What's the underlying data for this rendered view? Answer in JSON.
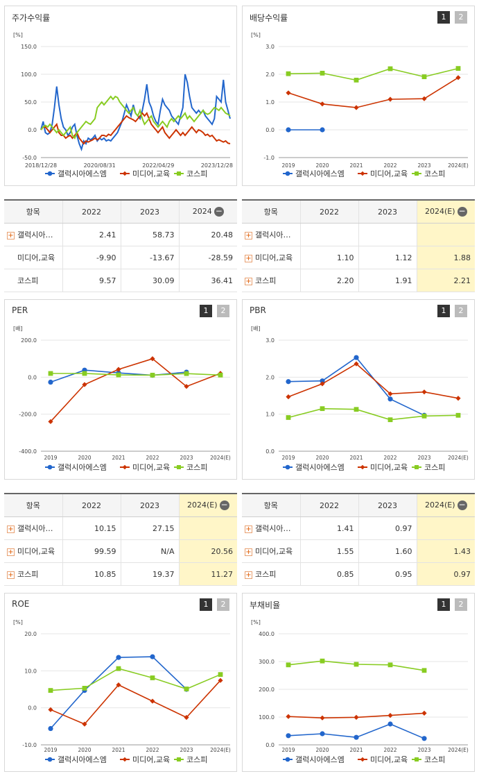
{
  "legend": {
    "s1": "갤럭시아에스엠",
    "s2": "미디어,교육",
    "s3": "코스피"
  },
  "colors": {
    "s1": "#2266cc",
    "s2": "#cc3300",
    "s3": "#88cc22"
  },
  "buttons": {
    "one": "1",
    "two": "2"
  },
  "row_plus": "+",
  "minus": "−",
  "charts": {
    "price": {
      "title": "주가수익률",
      "unit": "[%]",
      "y_ticks": [
        "150.0",
        "100.0",
        "50.0",
        "0.0",
        "-50.0"
      ],
      "x_ticks": [
        "2018/12/28",
        "2020/08/31",
        "2022/04/29",
        "2023/12/28"
      ]
    },
    "div": {
      "title": "배당수익률",
      "unit": "[%]",
      "y_ticks": [
        "3.0",
        "2.0",
        "1.0",
        "0.0",
        "-1.0"
      ],
      "x_ticks": [
        "2019",
        "2020",
        "2021",
        "2022",
        "2023",
        "2024(E)"
      ]
    },
    "per": {
      "title": "PER",
      "unit": "[배]",
      "y_ticks": [
        "200.0",
        "0.0",
        "-200.0",
        "-400.0"
      ],
      "x_ticks": [
        "2019",
        "2020",
        "2021",
        "2022",
        "2023",
        "2024(E)"
      ]
    },
    "pbr": {
      "title": "PBR",
      "unit": "[배]",
      "y_ticks": [
        "3.0",
        "2.0",
        "1.0",
        "0.0"
      ],
      "x_ticks": [
        "2019",
        "2020",
        "2021",
        "2022",
        "2023",
        "2024(E)"
      ]
    },
    "roe": {
      "title": "ROE",
      "unit": "[%]",
      "y_ticks": [
        "20.0",
        "10.0",
        "0.0",
        "-10.0"
      ],
      "x_ticks": [
        "2019",
        "2020",
        "2021",
        "2022",
        "2023",
        "2024(E)"
      ]
    },
    "debt": {
      "title": "부채비율",
      "unit": "[%]",
      "y_ticks": [
        "400.0",
        "300.0",
        "200.0",
        "100.0",
        "0.0"
      ],
      "x_ticks": [
        "2019",
        "2020",
        "2021",
        "2022",
        "2023",
        "2024(E)"
      ]
    }
  },
  "tables": {
    "price": {
      "header": [
        "항목",
        "2022",
        "2023",
        "2024"
      ],
      "rows": [
        {
          "name": "갤럭시아…",
          "plus": true,
          "v": [
            "2.41",
            "58.73",
            "20.48"
          ]
        },
        {
          "name": "미디어,교육",
          "plus": false,
          "v": [
            "-9.90",
            "-13.67",
            "-28.59"
          ]
        },
        {
          "name": "코스피",
          "plus": false,
          "v": [
            "9.57",
            "30.09",
            "36.41"
          ]
        }
      ]
    },
    "div": {
      "header": [
        "항목",
        "2022",
        "2023",
        "2024(E)"
      ],
      "rows": [
        {
          "name": "갤럭시아…",
          "plus": true,
          "v": [
            "",
            "",
            ""
          ]
        },
        {
          "name": "미디어,교육",
          "plus": true,
          "v": [
            "1.10",
            "1.12",
            "1.88"
          ]
        },
        {
          "name": "코스피",
          "plus": true,
          "v": [
            "2.20",
            "1.91",
            "2.21"
          ]
        }
      ]
    },
    "per": {
      "header": [
        "항목",
        "2022",
        "2023",
        "2024(E)"
      ],
      "rows": [
        {
          "name": "갤럭시아…",
          "plus": true,
          "v": [
            "10.15",
            "27.15",
            ""
          ]
        },
        {
          "name": "미디어,교육",
          "plus": true,
          "v": [
            "99.59",
            "N/A",
            "20.56"
          ]
        },
        {
          "name": "코스피",
          "plus": true,
          "v": [
            "10.85",
            "19.37",
            "11.27"
          ]
        }
      ]
    },
    "pbr": {
      "header": [
        "항목",
        "2022",
        "2023",
        "2024(E)"
      ],
      "rows": [
        {
          "name": "갤럭시아…",
          "plus": true,
          "v": [
            "1.41",
            "0.97",
            ""
          ]
        },
        {
          "name": "미디어,교육",
          "plus": true,
          "v": [
            "1.55",
            "1.60",
            "1.43"
          ]
        },
        {
          "name": "코스피",
          "plus": true,
          "v": [
            "0.85",
            "0.95",
            "0.97"
          ]
        }
      ]
    }
  },
  "chart_data": [
    {
      "id": "price",
      "type": "line",
      "title": "주가수익률",
      "ylabel": "[%]",
      "ylim": [
        -50,
        150
      ],
      "x_ticks": [
        "2018/12/28",
        "2020/08/31",
        "2022/04/29",
        "2023/12/28"
      ],
      "series": [
        {
          "name": "갤럭시아에스엠",
          "values": [
            0,
            15,
            -5,
            -8,
            -5,
            10,
            40,
            78,
            45,
            20,
            5,
            0,
            -10,
            -5,
            5,
            10,
            -10,
            -25,
            -35,
            -20,
            -25,
            -15,
            -18,
            -15,
            -10,
            -20,
            -15,
            -18,
            -15,
            -20,
            -18,
            -20,
            -15,
            -10,
            -5,
            5,
            15,
            30,
            45,
            35,
            25,
            45,
            30,
            25,
            20,
            35,
            55,
            82,
            50,
            40,
            25,
            15,
            10,
            35,
            55,
            45,
            40,
            35,
            25,
            20,
            15,
            10,
            25,
            40,
            100,
            85,
            60,
            40,
            35,
            30,
            35,
            30,
            35,
            25,
            20,
            15,
            10,
            20,
            60,
            55,
            50,
            90,
            50,
            35,
            20
          ]
        },
        {
          "name": "미디어,교육",
          "values": [
            0,
            5,
            5,
            0,
            -5,
            0,
            5,
            10,
            -5,
            -10,
            -10,
            -15,
            -12,
            -10,
            -15,
            -10,
            -5,
            -15,
            -20,
            -25,
            -20,
            -22,
            -20,
            -18,
            -15,
            -18,
            -15,
            -10,
            -10,
            -12,
            -8,
            -10,
            -5,
            0,
            5,
            10,
            15,
            20,
            25,
            22,
            20,
            18,
            15,
            20,
            25,
            30,
            25,
            30,
            20,
            10,
            5,
            0,
            -5,
            0,
            5,
            -5,
            -10,
            -15,
            -10,
            -5,
            0,
            -5,
            -10,
            -5,
            -10,
            -5,
            0,
            5,
            0,
            -5,
            0,
            -2,
            -5,
            -10,
            -8,
            -12,
            -10,
            -15,
            -20,
            -18,
            -20,
            -22,
            -20,
            -24,
            -25
          ]
        },
        {
          "name": "코스피",
          "values": [
            0,
            5,
            8,
            5,
            10,
            5,
            0,
            -5,
            0,
            -5,
            -10,
            -5,
            0,
            5,
            -10,
            -15,
            -5,
            0,
            5,
            10,
            15,
            12,
            10,
            15,
            20,
            40,
            45,
            50,
            45,
            50,
            55,
            60,
            55,
            60,
            58,
            50,
            45,
            40,
            35,
            30,
            35,
            40,
            30,
            25,
            35,
            20,
            10,
            15,
            20,
            25,
            15,
            10,
            5,
            10,
            15,
            10,
            5,
            15,
            20,
            15,
            20,
            25,
            20,
            25,
            30,
            20,
            25,
            20,
            15,
            20,
            25,
            30,
            35,
            30,
            28,
            30,
            35,
            40,
            38,
            35,
            40,
            35,
            30,
            28,
            25
          ]
        }
      ]
    },
    {
      "id": "div",
      "type": "line",
      "title": "배당수익률",
      "ylabel": "[%]",
      "ylim": [
        -1,
        3
      ],
      "x": [
        "2019",
        "2020",
        "2021",
        "2022",
        "2023",
        "2024(E)"
      ],
      "series": [
        {
          "name": "갤럭시아에스엠",
          "values": [
            0.0,
            0.0,
            null,
            null,
            null,
            null
          ]
        },
        {
          "name": "미디어,교육",
          "values": [
            1.33,
            0.93,
            0.8,
            1.1,
            1.12,
            1.88
          ]
        },
        {
          "name": "코스피",
          "values": [
            2.02,
            2.04,
            1.79,
            2.2,
            1.91,
            2.21
          ]
        }
      ]
    },
    {
      "id": "per",
      "type": "line",
      "title": "PER",
      "ylabel": "[배]",
      "ylim": [
        -400,
        200
      ],
      "x": [
        "2019",
        "2020",
        "2021",
        "2022",
        "2023",
        "2024(E)"
      ],
      "series": [
        {
          "name": "갤럭시아에스엠",
          "values": [
            -27,
            38,
            23,
            10.15,
            27.15,
            null
          ]
        },
        {
          "name": "미디어,교육",
          "values": [
            -240,
            -40,
            42,
            99.59,
            -50,
            20.56
          ]
        },
        {
          "name": "코스피",
          "values": [
            20,
            20,
            12,
            10.85,
            19.37,
            11.27
          ]
        }
      ]
    },
    {
      "id": "pbr",
      "type": "line",
      "title": "PBR",
      "ylabel": "[배]",
      "ylim": [
        0,
        3
      ],
      "x": [
        "2019",
        "2020",
        "2021",
        "2022",
        "2023",
        "2024(E)"
      ],
      "series": [
        {
          "name": "갤럭시아에스엠",
          "values": [
            1.88,
            1.9,
            2.53,
            1.41,
            0.97,
            null
          ]
        },
        {
          "name": "미디어,교육",
          "values": [
            1.47,
            1.82,
            2.36,
            1.55,
            1.6,
            1.43
          ]
        },
        {
          "name": "코스피",
          "values": [
            0.91,
            1.15,
            1.13,
            0.85,
            0.95,
            0.97
          ]
        }
      ]
    },
    {
      "id": "roe",
      "type": "line",
      "title": "ROE",
      "ylabel": "[%]",
      "ylim": [
        -10,
        20
      ],
      "x": [
        "2019",
        "2020",
        "2021",
        "2022",
        "2023",
        "2024(E)"
      ],
      "series": [
        {
          "name": "갤럭시아에스엠",
          "values": [
            -5.6,
            4.7,
            13.6,
            13.8,
            5.0,
            null
          ]
        },
        {
          "name": "미디어,교육",
          "values": [
            -0.5,
            -4.4,
            6.2,
            1.8,
            -2.6,
            7.4
          ]
        },
        {
          "name": "코스피",
          "values": [
            4.7,
            5.3,
            10.6,
            8.1,
            5.1,
            9.0
          ]
        }
      ]
    },
    {
      "id": "debt",
      "type": "line",
      "title": "부채비율",
      "ylabel": "[%]",
      "ylim": [
        0,
        400
      ],
      "x": [
        "2019",
        "2020",
        "2021",
        "2022",
        "2023",
        "2024(E)"
      ],
      "series": [
        {
          "name": "갤럭시아에스엠",
          "values": [
            33,
            40,
            27,
            75,
            23,
            null
          ]
        },
        {
          "name": "미디어,교육",
          "values": [
            102,
            97,
            99,
            106,
            114,
            null
          ]
        },
        {
          "name": "코스피",
          "values": [
            288,
            302,
            290,
            288,
            268,
            null
          ]
        }
      ]
    }
  ]
}
